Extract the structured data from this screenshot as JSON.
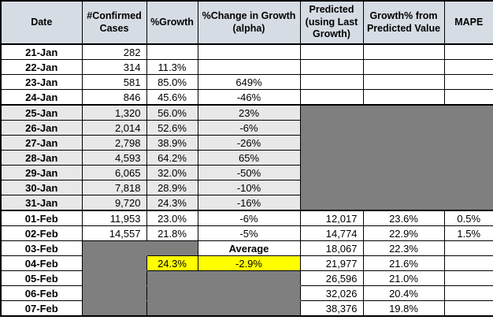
{
  "table": {
    "headers": [
      {
        "id": "date",
        "label": "Date"
      },
      {
        "id": "confirmed-cases",
        "label": "#Confirmed Cases"
      },
      {
        "id": "growth",
        "label": "%Growth"
      },
      {
        "id": "change-in-growth",
        "label": "%Change in Growth (alpha)"
      },
      {
        "id": "predicted",
        "label": "Predicted (using Last Growth)"
      },
      {
        "id": "growth-from-predicted",
        "label": "Growth% from Predicted Value"
      },
      {
        "id": "mape",
        "label": "MAPE"
      }
    ],
    "rows": [
      {
        "cells": [
          "21-Jan",
          "282",
          "",
          "",
          "",
          "",
          ""
        ]
      },
      {
        "cells": [
          "22-Jan",
          "314",
          "11.3%",
          "",
          "",
          "",
          ""
        ]
      },
      {
        "cells": [
          "23-Jan",
          "581",
          "85.0%",
          "649%",
          "",
          "",
          ""
        ]
      },
      {
        "cells": [
          "24-Jan",
          "846",
          "45.6%",
          "-46%",
          "",
          "",
          ""
        ]
      },
      {
        "cells": [
          "25-Jan",
          "1,320",
          "56.0%",
          "23%",
          "",
          "",
          ""
        ]
      },
      {
        "cells": [
          "26-Jan",
          "2,014",
          "52.6%",
          "-6%",
          "",
          "",
          ""
        ]
      },
      {
        "cells": [
          "27-Jan",
          "2,798",
          "38.9%",
          "-26%",
          "",
          "",
          ""
        ]
      },
      {
        "cells": [
          "28-Jan",
          "4,593",
          "64.2%",
          "65%",
          "",
          "",
          ""
        ]
      },
      {
        "cells": [
          "29-Jan",
          "6,065",
          "32.0%",
          "-50%",
          "",
          "",
          ""
        ]
      },
      {
        "cells": [
          "30-Jan",
          "7,818",
          "28.9%",
          "-10%",
          "",
          "",
          ""
        ]
      },
      {
        "cells": [
          "31-Jan",
          "9,720",
          "24.3%",
          "-16%",
          "",
          "",
          ""
        ]
      },
      {
        "cells": [
          "01-Feb",
          "11,953",
          "23.0%",
          "-6%",
          "12,017",
          "23.6%",
          "0.5%"
        ]
      },
      {
        "cells": [
          "02-Feb",
          "14,557",
          "21.8%",
          "-5%",
          "14,774",
          "22.9%",
          "1.5%"
        ]
      },
      {
        "cells": [
          "03-Feb",
          "",
          "",
          "Average",
          "18,067",
          "22.3%",
          ""
        ]
      },
      {
        "cells": [
          "04-Feb",
          "",
          "24.3%",
          "-2.9%",
          "21,977",
          "21.6%",
          ""
        ]
      },
      {
        "cells": [
          "05-Feb",
          "",
          "",
          "",
          "26,596",
          "21.0%",
          ""
        ]
      },
      {
        "cells": [
          "06-Feb",
          "",
          "",
          "",
          "32,026",
          "20.4%",
          ""
        ]
      },
      {
        "cells": [
          "07-Feb",
          "",
          "",
          "",
          "38,376",
          "19.8%",
          ""
        ]
      }
    ]
  },
  "colors": {
    "header_bg": "#D6DCE4",
    "shaded_row_bg": "#E8E8E8",
    "blocked_out_bg": "#7F7F7F",
    "highlight_bg": "#FFFF00",
    "grid_border": "#000000"
  }
}
